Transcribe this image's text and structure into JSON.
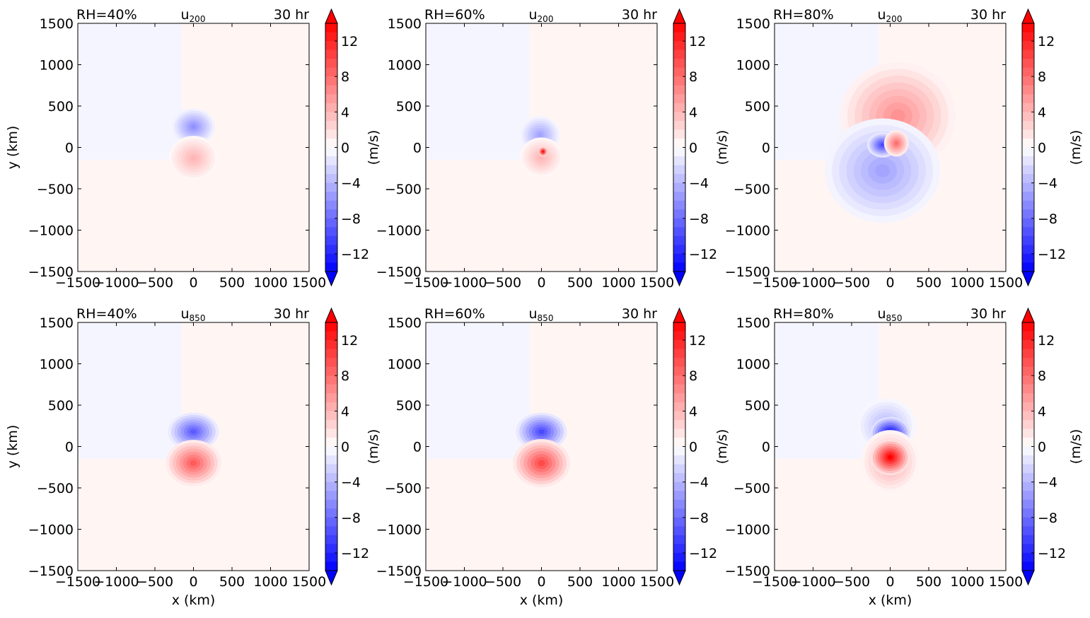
{
  "figure": {
    "colormap": {
      "neg": "#0000ff",
      "zero": "#ffffff",
      "pos": "#ff0000"
    },
    "colorbar": {
      "ticks": [
        12,
        8,
        4,
        0,
        -4,
        -8,
        -12
      ],
      "tick_labels": [
        "12",
        "8",
        "4",
        "0",
        "−4",
        "−8",
        "−12"
      ],
      "range": [
        -14,
        14
      ],
      "label": "(m/s)"
    }
  },
  "chart_data": [
    {
      "type": "heatmap",
      "row": 0,
      "col": 0,
      "title_left": "RH=40%",
      "title_center_base": "u",
      "title_center_sub": "200",
      "title_right": "30 hr",
      "xlabel": "",
      "ylabel": "y (km)",
      "xlim": [
        -1500,
        1500
      ],
      "ylim": [
        -1500,
        1500
      ],
      "xticks": [
        -1500,
        -1000,
        -500,
        0,
        500,
        1000,
        1500
      ],
      "xtick_labels": [
        "−1500",
        "−1000",
        "−500",
        "0",
        "500",
        "1000",
        "1500"
      ],
      "yticks": [
        1500,
        1000,
        500,
        0,
        -500,
        -1000,
        -1500
      ],
      "ytick_labels": [
        "1500",
        "1000",
        "500",
        "0",
        "−500",
        "−1000",
        "−1500"
      ],
      "colorbar_label": "",
      "features": [
        {
          "sign": "neg",
          "cx": 0,
          "cy": 250,
          "rx": 280,
          "ry": 220,
          "peak": 6
        },
        {
          "sign": "pos",
          "cx": 0,
          "cy": -130,
          "rx": 320,
          "ry": 270,
          "peak": 4
        }
      ]
    },
    {
      "type": "heatmap",
      "row": 0,
      "col": 1,
      "title_left": "RH=60%",
      "title_center_base": "u",
      "title_center_sub": "200",
      "title_right": "30 hr",
      "xlabel": "",
      "ylabel": "",
      "xlim": [
        -1500,
        1500
      ],
      "ylim": [
        -1500,
        1500
      ],
      "xticks": [
        -1500,
        -1000,
        -500,
        0,
        500,
        1000,
        1500
      ],
      "xtick_labels": [
        "−1500",
        "−1000",
        "−500",
        "0",
        "500",
        "1000",
        "1500"
      ],
      "yticks": [
        1500,
        1000,
        500,
        0,
        -500,
        -1000,
        -1500
      ],
      "ytick_labels": [
        "1500",
        "1000",
        "500",
        "0",
        "−500",
        "−1000",
        "−1500"
      ],
      "colorbar_label": "(m/s)",
      "features": [
        {
          "sign": "neg",
          "cx": -20,
          "cy": 150,
          "rx": 260,
          "ry": 230,
          "peak": 5
        },
        {
          "sign": "pos",
          "cx": 0,
          "cy": -120,
          "rx": 280,
          "ry": 240,
          "peak": 4
        },
        {
          "sign": "pos",
          "cx": 20,
          "cy": -50,
          "rx": 60,
          "ry": 60,
          "peak": 14
        }
      ]
    },
    {
      "type": "heatmap",
      "row": 0,
      "col": 2,
      "title_left": "RH=80%",
      "title_center_base": "u",
      "title_center_sub": "200",
      "title_right": "30 hr",
      "xlabel": "",
      "ylabel": "",
      "xlim": [
        -1500,
        1500
      ],
      "ylim": [
        -1500,
        1500
      ],
      "xticks": [
        -1500,
        -1000,
        -500,
        0,
        500,
        1000,
        1500
      ],
      "xtick_labels": [
        "−1500",
        "−1000",
        "−500",
        "0",
        "500",
        "1000",
        "1500"
      ],
      "yticks": [
        1500,
        1000,
        500,
        0,
        -500,
        -1000,
        -1500
      ],
      "ytick_labels": [
        "1500",
        "1000",
        "500",
        "0",
        "−500",
        "−1000",
        "−1500"
      ],
      "colorbar_label": "(m/s)",
      "features": [
        {
          "sign": "pos",
          "cx": 100,
          "cy": 380,
          "rx": 750,
          "ry": 650,
          "peak": 6
        },
        {
          "sign": "neg",
          "cx": -100,
          "cy": -280,
          "rx": 750,
          "ry": 630,
          "peak": 5
        },
        {
          "sign": "neg",
          "cx": -100,
          "cy": 30,
          "rx": 200,
          "ry": 150,
          "peak": 10
        },
        {
          "sign": "pos",
          "cx": 80,
          "cy": 50,
          "rx": 160,
          "ry": 160,
          "peak": 8
        }
      ]
    },
    {
      "type": "heatmap",
      "row": 1,
      "col": 0,
      "title_left": "RH=40%",
      "title_center_base": "u",
      "title_center_sub": "850",
      "title_right": "30 hr",
      "xlabel": "x (km)",
      "ylabel": "y (km)",
      "xlim": [
        -1500,
        1500
      ],
      "ylim": [
        -1500,
        1500
      ],
      "xticks": [
        -1500,
        -1000,
        -500,
        0,
        500,
        1000,
        1500
      ],
      "xtick_labels": [
        "−1500",
        "−1000",
        "−500",
        "0",
        "500",
        "1000",
        "1500"
      ],
      "yticks": [
        1500,
        1000,
        500,
        0,
        -500,
        -1000,
        -1500
      ],
      "ytick_labels": [
        "1500",
        "1000",
        "500",
        "0",
        "−500",
        "−1000",
        "−1500"
      ],
      "colorbar_label": "",
      "features": [
        {
          "sign": "neg",
          "cx": 0,
          "cy": 180,
          "rx": 330,
          "ry": 230,
          "peak": 9
        },
        {
          "sign": "pos",
          "cx": 0,
          "cy": -200,
          "rx": 360,
          "ry": 280,
          "peak": 9
        }
      ]
    },
    {
      "type": "heatmap",
      "row": 1,
      "col": 1,
      "title_left": "RH=60%",
      "title_center_base": "u",
      "title_center_sub": "850",
      "title_right": "30 hr",
      "xlabel": "x (km)",
      "ylabel": "",
      "xlim": [
        -1500,
        1500
      ],
      "ylim": [
        -1500,
        1500
      ],
      "xticks": [
        -1500,
        -1000,
        -500,
        0,
        500,
        1000,
        1500
      ],
      "xtick_labels": [
        "−1500",
        "−1000",
        "−500",
        "0",
        "500",
        "1000",
        "1500"
      ],
      "yticks": [
        1500,
        1000,
        500,
        0,
        -500,
        -1000,
        -1500
      ],
      "ytick_labels": [
        "1500",
        "1000",
        "500",
        "0",
        "−500",
        "−1000",
        "−1500"
      ],
      "colorbar_label": "(m/s)",
      "features": [
        {
          "sign": "neg",
          "cx": 0,
          "cy": 180,
          "rx": 330,
          "ry": 230,
          "peak": 10
        },
        {
          "sign": "pos",
          "cx": 0,
          "cy": -200,
          "rx": 370,
          "ry": 290,
          "peak": 10
        }
      ]
    },
    {
      "type": "heatmap",
      "row": 1,
      "col": 2,
      "title_left": "RH=80%",
      "title_center_base": "u",
      "title_center_sub": "850",
      "title_right": "30 hr",
      "xlabel": "x (km)",
      "ylabel": "",
      "xlim": [
        -1500,
        1500
      ],
      "ylim": [
        -1500,
        1500
      ],
      "xticks": [
        -1500,
        -1000,
        -500,
        0,
        500,
        1000,
        1500
      ],
      "xtick_labels": [
        "−1500",
        "−1000",
        "−500",
        "0",
        "500",
        "1000",
        "1500"
      ],
      "yticks": [
        1500,
        1000,
        500,
        0,
        -500,
        -1000,
        -1500
      ],
      "ytick_labels": [
        "1500",
        "1000",
        "500",
        "0",
        "−500",
        "−1000",
        "−1500"
      ],
      "colorbar_label": "(m/s)",
      "features": [
        {
          "sign": "neg",
          "cx": -50,
          "cy": 250,
          "rx": 380,
          "ry": 330,
          "peak": 4
        },
        {
          "sign": "neg",
          "cx": 0,
          "cy": 160,
          "rx": 260,
          "ry": 200,
          "peak": 14
        },
        {
          "sign": "pos",
          "cx": 0,
          "cy": -180,
          "rx": 380,
          "ry": 380,
          "peak": 5
        },
        {
          "sign": "pos",
          "cx": 0,
          "cy": -130,
          "rx": 260,
          "ry": 220,
          "peak": 14
        }
      ]
    }
  ]
}
